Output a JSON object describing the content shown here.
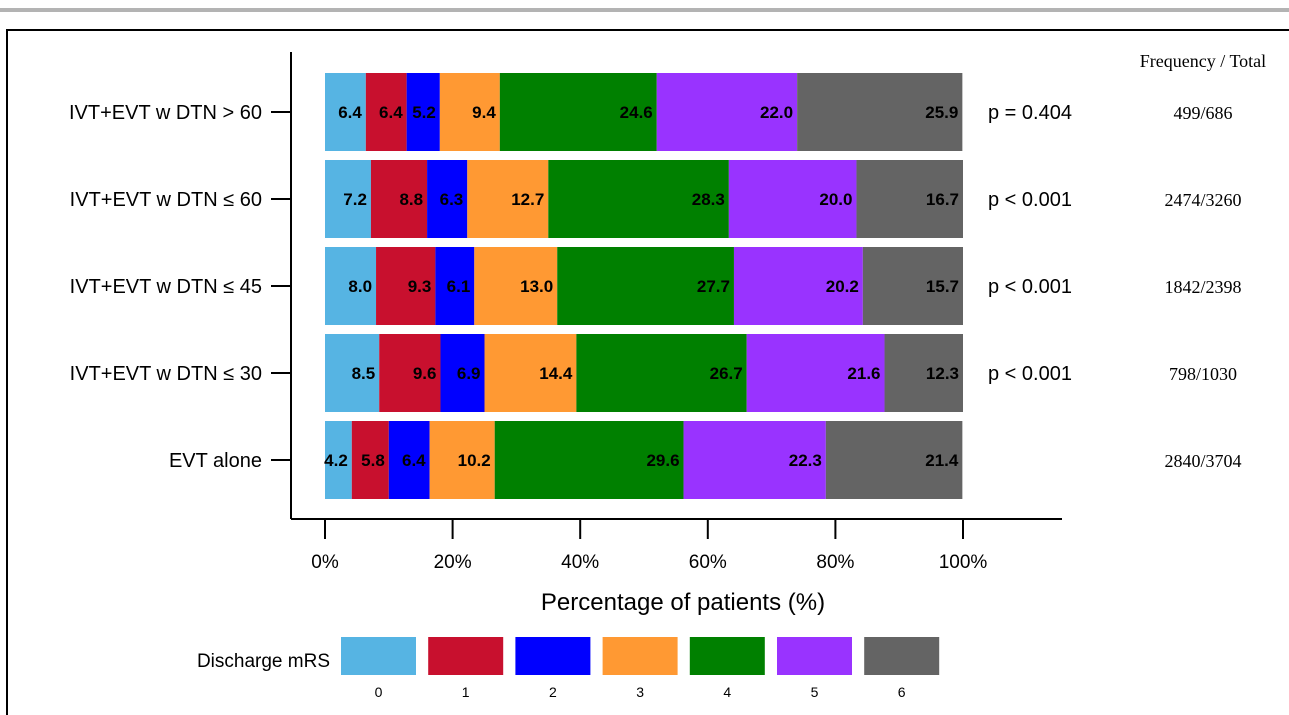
{
  "chart_data": {
    "type": "bar",
    "orientation": "horizontal",
    "stacked": true,
    "xlabel": "Percentage of patients (%)",
    "xticks": [
      "0%",
      "20%",
      "40%",
      "60%",
      "80%",
      "100%"
    ],
    "xlim": [
      0,
      100
    ],
    "categories": [
      "IVT+EVT w DTN > 60",
      "IVT+EVT w DTN ≤ 60",
      "IVT+EVT w DTN ≤ 45",
      "IVT+EVT w DTN ≤ 30",
      "EVT alone"
    ],
    "series": [
      {
        "name": "0",
        "color": "#56b4e3",
        "values": [
          6.4,
          7.2,
          8.0,
          8.5,
          4.2
        ]
      },
      {
        "name": "1",
        "color": "#c8102e",
        "values": [
          6.4,
          8.8,
          9.3,
          9.6,
          5.8
        ]
      },
      {
        "name": "2",
        "color": "#0000ff",
        "values": [
          5.2,
          6.3,
          6.1,
          6.9,
          6.4
        ]
      },
      {
        "name": "3",
        "color": "#ff9933",
        "values": [
          9.4,
          12.7,
          13.0,
          14.4,
          10.2
        ]
      },
      {
        "name": "4",
        "color": "#008000",
        "values": [
          24.6,
          28.3,
          27.7,
          26.7,
          29.6
        ]
      },
      {
        "name": "5",
        "color": "#9933ff",
        "values": [
          22.0,
          20.0,
          20.2,
          21.6,
          22.3
        ]
      },
      {
        "name": "6",
        "color": "#646464",
        "values": [
          25.9,
          16.7,
          15.7,
          12.3,
          21.4
        ]
      }
    ],
    "p_values": [
      "p = 0.404",
      "p < 0.001",
      "p < 0.001",
      "p < 0.001",
      ""
    ],
    "frequency_header": "Frequency / Total",
    "frequencies": [
      "499/686",
      "2474/3260",
      "1842/2398",
      "798/1030",
      "2840/3704"
    ],
    "legend": {
      "title": "Discharge mRS",
      "position": "bottom"
    }
  }
}
